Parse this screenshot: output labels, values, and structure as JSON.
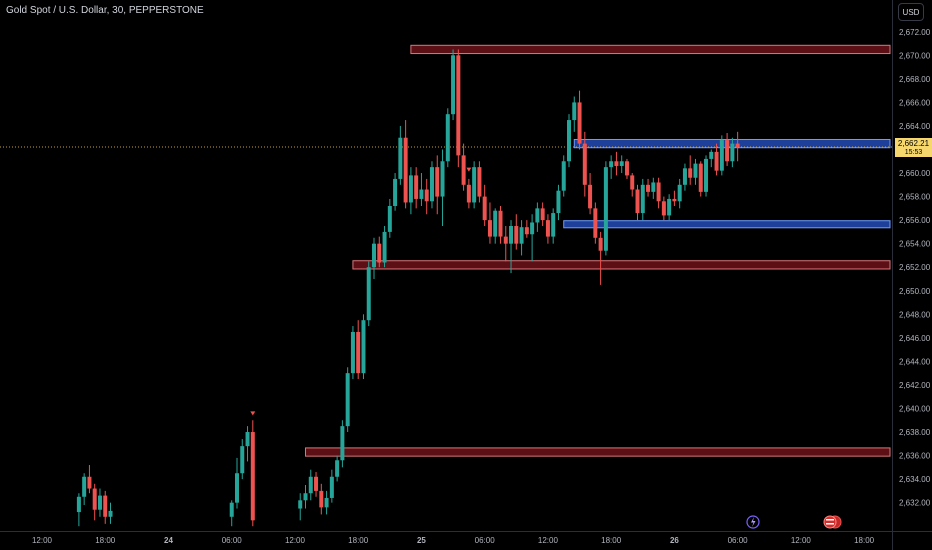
{
  "header": {
    "symbol_title": "Gold Spot / U.S. Dollar, 30, PEPPERSTONE"
  },
  "currency_button": "USD",
  "last_price": {
    "value": "2,662.21",
    "countdown": "15:53"
  },
  "colors": {
    "background": "#000000",
    "up_candle": "#26a69a",
    "down_candle": "#ef5350",
    "supply_zone_fill": "#5c0f14",
    "supply_zone_border": "#d9777b",
    "demand_zone_fill": "#1e3f9a",
    "demand_zone_border": "#6e9cff",
    "price_line": "#c4a13a",
    "price_badge": "#f5d76e"
  },
  "chart_data": {
    "type": "candlestick",
    "title": "Gold Spot / U.S. Dollar, 30, PEPPERSTONE",
    "ylim": [
      2630,
      2673
    ],
    "y_ticks": [
      "2,632.00",
      "2,634.00",
      "2,636.00",
      "2,638.00",
      "2,640.00",
      "2,642.00",
      "2,644.00",
      "2,646.00",
      "2,648.00",
      "2,650.00",
      "2,652.00",
      "2,654.00",
      "2,656.00",
      "2,658.00",
      "2,660.00",
      "2,662.00",
      "2,664.00",
      "2,666.00",
      "2,668.00",
      "2,670.00",
      "2,672.00"
    ],
    "x_ticks": [
      {
        "label": "12:00",
        "bar": 0
      },
      {
        "label": "18:00",
        "bar": 12
      },
      {
        "label": "24",
        "bar": 24
      },
      {
        "label": "06:00",
        "bar": 36
      },
      {
        "label": "12:00",
        "bar": 48
      },
      {
        "label": "18:00",
        "bar": 60
      },
      {
        "label": "25",
        "bar": 72
      },
      {
        "label": "06:00",
        "bar": 84
      },
      {
        "label": "12:00",
        "bar": 96
      },
      {
        "label": "18:00",
        "bar": 108
      },
      {
        "label": "26",
        "bar": 120
      },
      {
        "label": "06:00",
        "bar": 132
      },
      {
        "label": "12:00",
        "bar": 144
      },
      {
        "label": "18:00",
        "bar": 156
      },
      {
        "label": "",
        "bar": 168
      }
    ],
    "candles": [
      {
        "bar": 7,
        "o": 2631.2,
        "h": 2632.8,
        "l": 2630.0,
        "c": 2632.5
      },
      {
        "bar": 8,
        "o": 2632.5,
        "h": 2634.5,
        "l": 2631.8,
        "c": 2634.2
      },
      {
        "bar": 9,
        "o": 2634.2,
        "h": 2635.2,
        "l": 2632.8,
        "c": 2633.2
      },
      {
        "bar": 10,
        "o": 2633.2,
        "h": 2633.6,
        "l": 2630.5,
        "c": 2631.4
      },
      {
        "bar": 11,
        "o": 2631.4,
        "h": 2633.2,
        "l": 2630.8,
        "c": 2632.6
      },
      {
        "bar": 12,
        "o": 2632.6,
        "h": 2633.0,
        "l": 2630.2,
        "c": 2630.8
      },
      {
        "bar": 13,
        "o": 2630.8,
        "h": 2632.0,
        "l": 2630.2,
        "c": 2631.3
      },
      {
        "bar": 36,
        "o": 2630.8,
        "h": 2632.2,
        "l": 2630.0,
        "c": 2632.0
      },
      {
        "bar": 37,
        "o": 2632.0,
        "h": 2635.8,
        "l": 2631.5,
        "c": 2634.5
      },
      {
        "bar": 38,
        "o": 2634.5,
        "h": 2637.4,
        "l": 2634.0,
        "c": 2636.8
      },
      {
        "bar": 39,
        "o": 2636.8,
        "h": 2638.5,
        "l": 2635.5,
        "c": 2638.0
      },
      {
        "bar": 40,
        "o": 2638.0,
        "h": 2639.0,
        "l": 2630.0,
        "c": 2630.5
      },
      {
        "bar": 49,
        "o": 2631.5,
        "h": 2632.8,
        "l": 2630.5,
        "c": 2632.2
      },
      {
        "bar": 50,
        "o": 2632.2,
        "h": 2633.5,
        "l": 2631.5,
        "c": 2632.8
      },
      {
        "bar": 51,
        "o": 2632.8,
        "h": 2634.8,
        "l": 2632.2,
        "c": 2634.2
      },
      {
        "bar": 52,
        "o": 2634.2,
        "h": 2634.6,
        "l": 2632.5,
        "c": 2633.0
      },
      {
        "bar": 53,
        "o": 2633.0,
        "h": 2633.6,
        "l": 2631.0,
        "c": 2631.6
      },
      {
        "bar": 54,
        "o": 2631.6,
        "h": 2633.0,
        "l": 2631.0,
        "c": 2632.4
      },
      {
        "bar": 55,
        "o": 2632.4,
        "h": 2634.8,
        "l": 2632.0,
        "c": 2634.2
      },
      {
        "bar": 56,
        "o": 2634.2,
        "h": 2636.0,
        "l": 2633.8,
        "c": 2635.6
      },
      {
        "bar": 57,
        "o": 2635.6,
        "h": 2639.0,
        "l": 2635.0,
        "c": 2638.5
      },
      {
        "bar": 58,
        "o": 2638.5,
        "h": 2643.5,
        "l": 2638.0,
        "c": 2643.0
      },
      {
        "bar": 59,
        "o": 2643.0,
        "h": 2647.0,
        "l": 2642.5,
        "c": 2646.5
      },
      {
        "bar": 60,
        "o": 2646.5,
        "h": 2647.5,
        "l": 2642.5,
        "c": 2643.0
      },
      {
        "bar": 61,
        "o": 2643.0,
        "h": 2648.0,
        "l": 2642.5,
        "c": 2647.5
      },
      {
        "bar": 62,
        "o": 2647.5,
        "h": 2652.5,
        "l": 2647.0,
        "c": 2652.0
      },
      {
        "bar": 63,
        "o": 2652.0,
        "h": 2654.5,
        "l": 2651.0,
        "c": 2654.0
      },
      {
        "bar": 64,
        "o": 2654.0,
        "h": 2654.6,
        "l": 2652.0,
        "c": 2652.4
      },
      {
        "bar": 65,
        "o": 2652.4,
        "h": 2655.5,
        "l": 2652.0,
        "c": 2655.0
      },
      {
        "bar": 66,
        "o": 2655.0,
        "h": 2657.8,
        "l": 2654.5,
        "c": 2657.2
      },
      {
        "bar": 67,
        "o": 2657.2,
        "h": 2660.0,
        "l": 2656.8,
        "c": 2659.5
      },
      {
        "bar": 68,
        "o": 2659.5,
        "h": 2664.0,
        "l": 2659.0,
        "c": 2663.0
      },
      {
        "bar": 69,
        "o": 2663.0,
        "h": 2664.5,
        "l": 2657.0,
        "c": 2657.5
      },
      {
        "bar": 70,
        "o": 2657.5,
        "h": 2660.5,
        "l": 2656.5,
        "c": 2659.8
      },
      {
        "bar": 71,
        "o": 2659.8,
        "h": 2660.5,
        "l": 2657.0,
        "c": 2657.8
      },
      {
        "bar": 72,
        "o": 2657.8,
        "h": 2660.0,
        "l": 2657.2,
        "c": 2658.6
      },
      {
        "bar": 73,
        "o": 2658.6,
        "h": 2659.5,
        "l": 2656.5,
        "c": 2657.6
      },
      {
        "bar": 74,
        "o": 2657.6,
        "h": 2661.0,
        "l": 2657.0,
        "c": 2660.5
      },
      {
        "bar": 75,
        "o": 2660.5,
        "h": 2661.5,
        "l": 2656.5,
        "c": 2658.0
      },
      {
        "bar": 76,
        "o": 2658.0,
        "h": 2662.0,
        "l": 2655.5,
        "c": 2661.0
      },
      {
        "bar": 77,
        "o": 2661.0,
        "h": 2665.5,
        "l": 2660.5,
        "c": 2665.0
      },
      {
        "bar": 78,
        "o": 2665.0,
        "h": 2670.5,
        "l": 2664.5,
        "c": 2670.0
      },
      {
        "bar": 79,
        "o": 2670.0,
        "h": 2670.5,
        "l": 2660.5,
        "c": 2661.5
      },
      {
        "bar": 80,
        "o": 2661.5,
        "h": 2662.5,
        "l": 2658.5,
        "c": 2659.0
      },
      {
        "bar": 81,
        "o": 2659.0,
        "h": 2659.5,
        "l": 2657.0,
        "c": 2657.5
      },
      {
        "bar": 82,
        "o": 2657.5,
        "h": 2661.0,
        "l": 2657.0,
        "c": 2660.5
      },
      {
        "bar": 83,
        "o": 2660.5,
        "h": 2661.0,
        "l": 2657.5,
        "c": 2658.0
      },
      {
        "bar": 84,
        "o": 2658.0,
        "h": 2659.0,
        "l": 2655.5,
        "c": 2656.0
      },
      {
        "bar": 85,
        "o": 2656.0,
        "h": 2657.5,
        "l": 2654.0,
        "c": 2654.6
      },
      {
        "bar": 86,
        "o": 2654.6,
        "h": 2657.0,
        "l": 2654.0,
        "c": 2656.8
      },
      {
        "bar": 87,
        "o": 2656.8,
        "h": 2657.2,
        "l": 2654.0,
        "c": 2654.6
      },
      {
        "bar": 88,
        "o": 2654.6,
        "h": 2655.5,
        "l": 2652.5,
        "c": 2654.0
      },
      {
        "bar": 89,
        "o": 2654.0,
        "h": 2656.0,
        "l": 2651.5,
        "c": 2655.5
      },
      {
        "bar": 90,
        "o": 2655.5,
        "h": 2656.5,
        "l": 2653.5,
        "c": 2654.0
      },
      {
        "bar": 91,
        "o": 2654.0,
        "h": 2656.0,
        "l": 2653.0,
        "c": 2655.4
      },
      {
        "bar": 92,
        "o": 2655.4,
        "h": 2656.0,
        "l": 2654.5,
        "c": 2654.8
      },
      {
        "bar": 93,
        "o": 2654.8,
        "h": 2656.5,
        "l": 2652.5,
        "c": 2655.8
      },
      {
        "bar": 94,
        "o": 2655.8,
        "h": 2657.5,
        "l": 2655.0,
        "c": 2657.0
      },
      {
        "bar": 95,
        "o": 2657.0,
        "h": 2657.5,
        "l": 2655.5,
        "c": 2656.0
      },
      {
        "bar": 96,
        "o": 2656.0,
        "h": 2656.5,
        "l": 2654.0,
        "c": 2654.6
      },
      {
        "bar": 97,
        "o": 2654.6,
        "h": 2657.0,
        "l": 2654.0,
        "c": 2656.6
      },
      {
        "bar": 98,
        "o": 2656.6,
        "h": 2659.0,
        "l": 2656.0,
        "c": 2658.5
      },
      {
        "bar": 99,
        "o": 2658.5,
        "h": 2661.5,
        "l": 2658.0,
        "c": 2661.0
      },
      {
        "bar": 100,
        "o": 2661.0,
        "h": 2665.0,
        "l": 2660.5,
        "c": 2664.5
      },
      {
        "bar": 101,
        "o": 2664.5,
        "h": 2666.5,
        "l": 2663.5,
        "c": 2666.0
      },
      {
        "bar": 102,
        "o": 2666.0,
        "h": 2667.0,
        "l": 2662.0,
        "c": 2662.5
      },
      {
        "bar": 103,
        "o": 2662.5,
        "h": 2663.5,
        "l": 2658.0,
        "c": 2659.0
      },
      {
        "bar": 104,
        "o": 2659.0,
        "h": 2660.0,
        "l": 2656.5,
        "c": 2657.0
      },
      {
        "bar": 105,
        "o": 2657.0,
        "h": 2657.5,
        "l": 2654.0,
        "c": 2654.5
      },
      {
        "bar": 106,
        "o": 2654.5,
        "h": 2655.0,
        "l": 2650.5,
        "c": 2653.4
      },
      {
        "bar": 107,
        "o": 2653.4,
        "h": 2661.0,
        "l": 2653.0,
        "c": 2660.5
      },
      {
        "bar": 108,
        "o": 2660.5,
        "h": 2661.5,
        "l": 2659.5,
        "c": 2661.0
      },
      {
        "bar": 109,
        "o": 2661.0,
        "h": 2661.8,
        "l": 2659.8,
        "c": 2660.6
      },
      {
        "bar": 110,
        "o": 2660.6,
        "h": 2661.5,
        "l": 2660.0,
        "c": 2661.0
      },
      {
        "bar": 111,
        "o": 2661.0,
        "h": 2661.2,
        "l": 2659.5,
        "c": 2659.8
      },
      {
        "bar": 112,
        "o": 2659.8,
        "h": 2660.0,
        "l": 2658.0,
        "c": 2658.6
      },
      {
        "bar": 113,
        "o": 2658.6,
        "h": 2659.0,
        "l": 2656.0,
        "c": 2656.6
      },
      {
        "bar": 114,
        "o": 2656.6,
        "h": 2659.5,
        "l": 2656.0,
        "c": 2659.0
      },
      {
        "bar": 115,
        "o": 2659.0,
        "h": 2659.5,
        "l": 2658.0,
        "c": 2658.4
      },
      {
        "bar": 116,
        "o": 2658.4,
        "h": 2659.6,
        "l": 2657.8,
        "c": 2659.2
      },
      {
        "bar": 117,
        "o": 2659.2,
        "h": 2659.6,
        "l": 2657.0,
        "c": 2657.6
      },
      {
        "bar": 118,
        "o": 2657.6,
        "h": 2658.0,
        "l": 2656.0,
        "c": 2656.4
      },
      {
        "bar": 119,
        "o": 2656.4,
        "h": 2658.2,
        "l": 2656.0,
        "c": 2657.8
      },
      {
        "bar": 120,
        "o": 2657.8,
        "h": 2658.5,
        "l": 2657.2,
        "c": 2657.6
      },
      {
        "bar": 121,
        "o": 2657.6,
        "h": 2659.5,
        "l": 2657.0,
        "c": 2659.0
      },
      {
        "bar": 122,
        "o": 2659.0,
        "h": 2660.8,
        "l": 2658.5,
        "c": 2660.4
      },
      {
        "bar": 123,
        "o": 2660.4,
        "h": 2661.5,
        "l": 2659.0,
        "c": 2659.6
      },
      {
        "bar": 124,
        "o": 2659.6,
        "h": 2661.2,
        "l": 2659.0,
        "c": 2660.8
      },
      {
        "bar": 125,
        "o": 2660.8,
        "h": 2661.0,
        "l": 2658.0,
        "c": 2658.4
      },
      {
        "bar": 126,
        "o": 2658.4,
        "h": 2661.5,
        "l": 2658.0,
        "c": 2661.2
      },
      {
        "bar": 127,
        "o": 2661.2,
        "h": 2662.0,
        "l": 2660.5,
        "c": 2661.8
      },
      {
        "bar": 128,
        "o": 2661.8,
        "h": 2662.5,
        "l": 2659.8,
        "c": 2660.2
      },
      {
        "bar": 129,
        "o": 2660.2,
        "h": 2663.2,
        "l": 2659.8,
        "c": 2662.8
      },
      {
        "bar": 130,
        "o": 2662.8,
        "h": 2663.4,
        "l": 2660.6,
        "c": 2661.0
      },
      {
        "bar": 131,
        "o": 2661.0,
        "h": 2663.0,
        "l": 2660.5,
        "c": 2662.5
      },
      {
        "bar": 132,
        "o": 2662.5,
        "h": 2663.5,
        "l": 2661.0,
        "c": 2662.21
      }
    ],
    "zones": [
      {
        "type": "supply",
        "x0": 70,
        "x1": 179,
        "ymin": 2670.15,
        "ymax": 2670.85
      },
      {
        "type": "demand",
        "x0": 101,
        "x1": 175,
        "ymin": 2662.15,
        "ymax": 2662.85
      },
      {
        "type": "demand",
        "x0": 99,
        "x1": 175,
        "ymin": 2655.35,
        "ymax": 2655.95
      },
      {
        "type": "supply",
        "x0": 59,
        "x1": 179,
        "ymin": 2651.85,
        "ymax": 2652.55
      },
      {
        "type": "supply",
        "x0": 50,
        "x1": 179,
        "ymin": 2635.95,
        "ymax": 2636.65
      }
    ],
    "last_price": 2662.21,
    "markers": [
      {
        "type": "down-triangle",
        "bar": 40,
        "price": 2639.5
      },
      {
        "type": "down-triangle",
        "bar": 81,
        "price": 2660.2
      }
    ]
  }
}
